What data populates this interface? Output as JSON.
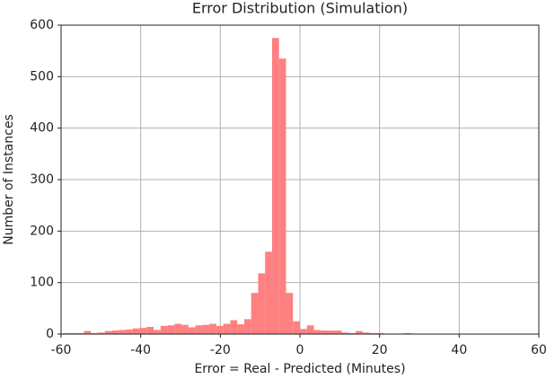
{
  "chart_data": {
    "type": "histogram",
    "title": "Error Distribution (Simulation)",
    "xlabel": "Error = Real - Predicted (Minutes)",
    "ylabel": "Number of Instances",
    "bins": [
      -59.5,
      -57.75,
      -56,
      -54.25,
      -52.5,
      -50.75,
      -49,
      -47.25,
      -45.5,
      -43.75,
      -42,
      -40.25,
      -38.5,
      -36.75,
      -35,
      -33.25,
      -31.5,
      -29.75,
      -28,
      -26.25,
      -24.5,
      -22.75,
      -21,
      -19.25,
      -17.5,
      -15.75,
      -14,
      -12.25,
      -10.5,
      -8.75,
      -7,
      -5.25,
      -3.5,
      -1.75,
      0,
      1.75,
      3.5,
      5.25,
      7,
      8.75,
      10.5,
      12.25,
      14,
      15.75,
      17.5,
      19.25,
      21,
      22.75,
      24.5,
      26.25,
      28,
      29.75
    ],
    "values": [
      2,
      2,
      2,
      6,
      2,
      3,
      6,
      7,
      8,
      9,
      11,
      12,
      14,
      8,
      16,
      17,
      20,
      18,
      13,
      17,
      18,
      20,
      16,
      20,
      27,
      19,
      29,
      80,
      118,
      160,
      575,
      535,
      80,
      25,
      10,
      17,
      8,
      7,
      7,
      7,
      3,
      2,
      6,
      3,
      2,
      2,
      1,
      1,
      1,
      2,
      1
    ],
    "color": "#ff8080",
    "xlim": [
      -60,
      60
    ],
    "xticks": [
      -60,
      -40,
      -20,
      0,
      20,
      40,
      60
    ],
    "ylim": [
      0,
      600
    ],
    "yticks": [
      0,
      100,
      200,
      300,
      400,
      500,
      600
    ],
    "grid": true
  }
}
